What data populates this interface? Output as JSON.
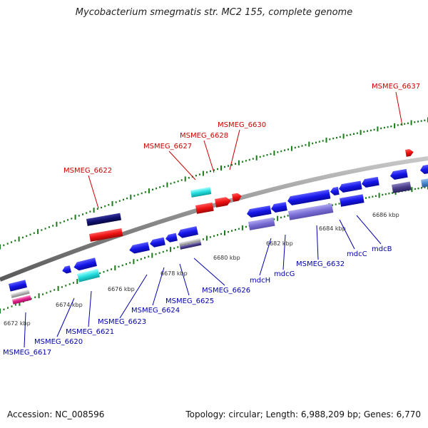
{
  "title": "Mycobacterium smegmatis str. MC2 155, complete genome",
  "footer": {
    "accession": "Accession: NC_008596",
    "summary": "Topology: circular; Length: 6,988,209 bp; Genes: 6,770"
  },
  "colors": {
    "backbone": "#8a8a8a",
    "ticks": "#1a7a1a",
    "label_top": "#cc0000",
    "label_bottom": "#0000aa",
    "gene_blue": "#1a1aee",
    "gene_red": "#ee1111",
    "gene_cyan": "#22dddd",
    "gene_navy": "#101070",
    "gene_lavender": "#7b6fd6",
    "gene_slate": "#4a3f8a",
    "gene_magenta": "#e0208a",
    "gene_grey": "#b8b8b8",
    "gene_steel": "#4a8ad0"
  },
  "scale_labels": [
    "6672 kbp",
    "6674 kbp",
    "6676 kbp",
    "6678 kbp",
    "6680 kbp",
    "6682 kbp",
    "6684 kbp",
    "6686 kbp"
  ],
  "gene_labels_top": [
    "MSMEG_6622",
    "MSMEG_6627",
    "MSMEG_6628",
    "MSMEG_6630",
    "MSMEG_6637"
  ],
  "gene_labels_bottom": [
    "MSMEG_6617",
    "MSMEG_6620",
    "MSMEG_6621",
    "MSMEG_6623",
    "MSMEG_6624",
    "MSMEG_6625",
    "MSMEG_6626",
    "mdcH",
    "mdcG",
    "MSMEG_6632",
    "mdcC",
    "mdcB"
  ]
}
